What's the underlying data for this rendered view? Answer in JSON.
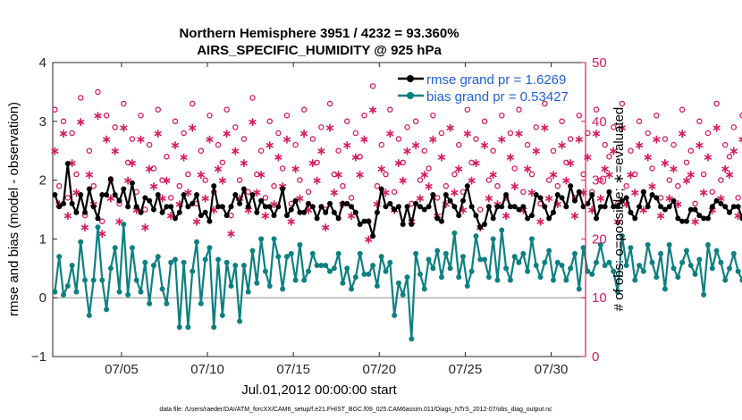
{
  "chart_data": {
    "type": "line",
    "title_line1": "Northern Hemisphere 3951 / 4232 = 93.360%",
    "title_line2": "AIRS_SPECIFIC_HUMIDITY @ 925 hPa",
    "ylabel_left": "rmse and bias (model - observation)",
    "ylabel_right": "# of obs: o=possible; ∗=evaluated",
    "xlabel": "Jul.01,2012 00:00:00 start",
    "footer": "data file: /Users/raeder/DAI/ATM_forcXX/CAM6_setup/f.e21.FHIST_BGC.f09_025.CAM6assim.011/Diags_NTrS_2012-07/obs_diag_output.nc",
    "xlim": [
      1,
      32
    ],
    "ylim_left": [
      -1,
      4
    ],
    "ylim_right": [
      0,
      50
    ],
    "x_ticks": [
      5,
      10,
      15,
      20,
      25,
      30
    ],
    "x_tick_labels": [
      "07/05",
      "07/10",
      "07/15",
      "07/20",
      "07/25",
      "07/30"
    ],
    "yl_ticks": [
      -1,
      0,
      1,
      2,
      3,
      4
    ],
    "yl_tick_labels": [
      "−1",
      "0",
      "1",
      "2",
      "3",
      "4"
    ],
    "yr_ticks": [
      0,
      10,
      20,
      30,
      40,
      50
    ],
    "yr_tick_labels": [
      "0",
      "10",
      "20",
      "30",
      "40",
      "50"
    ],
    "grid": false,
    "legend_position": "top-right",
    "colors": {
      "rmse": "#000000",
      "bias": "#0d8080",
      "obs": "#d81b5a",
      "zero_line": "#b3b3b3"
    },
    "x_start": 1.125,
    "x_step": 0.25,
    "series": [
      {
        "name": "rmse grand pr = 1.6269",
        "axis": "left",
        "values": [
          1.75,
          1.55,
          1.6,
          2.28,
          1.6,
          1.45,
          1.75,
          1.45,
          1.85,
          1.55,
          1.35,
          1.75,
          1.75,
          2.02,
          1.75,
          1.65,
          1.85,
          1.55,
          1.95,
          1.55,
          1.45,
          1.7,
          1.65,
          1.5,
          1.75,
          1.45,
          1.55,
          1.55,
          1.35,
          1.45,
          1.75,
          1.55,
          1.6,
          1.75,
          1.4,
          1.45,
          1.3,
          1.9,
          1.55,
          1.55,
          1.4,
          1.55,
          1.75,
          1.6,
          1.85,
          1.55,
          1.75,
          1.45,
          1.65,
          1.55,
          1.55,
          1.4,
          1.55,
          1.85,
          1.4,
          1.5,
          1.65,
          1.45,
          1.45,
          1.6,
          1.55,
          1.35,
          1.55,
          1.45,
          1.6,
          1.45,
          1.35,
          1.6,
          1.6,
          1.55,
          1.45,
          1.25,
          1.3,
          1.3,
          1.05,
          1.45,
          1.85,
          1.55,
          1.6,
          1.5,
          1.55,
          1.25,
          1.55,
          1.25,
          1.6,
          1.55,
          1.5,
          1.55,
          1.75,
          1.35,
          1.3,
          1.75,
          1.65,
          1.55,
          1.4,
          1.65,
          1.9,
          1.55,
          1.4,
          1.2,
          1.25,
          1.55,
          1.35,
          1.55,
          1.55,
          1.75,
          1.55,
          1.55,
          1.5,
          1.55,
          1.35,
          1.4,
          1.75,
          1.7,
          1.55,
          1.35,
          1.45,
          1.75,
          1.7,
          1.55,
          1.9,
          1.65,
          1.8,
          1.55,
          1.6,
          1.75,
          1.35,
          1.55,
          1.55,
          1.8,
          1.55,
          1.55,
          1.65,
          1.7,
          1.45,
          1.35,
          1.55,
          1.8,
          1.55,
          1.75,
          1.7,
          1.55,
          1.5,
          1.55,
          1.65,
          1.35,
          1.3,
          1.3,
          1.5,
          1.5,
          1.4,
          1.35,
          1.35,
          1.55,
          1.65,
          1.6,
          1.55,
          1.45,
          1.55,
          1.55,
          1.35,
          1.45,
          1.5,
          1.45,
          1.55,
          1.5,
          1.55,
          1.55,
          1.45,
          1.4,
          1.55,
          1.45,
          1.55,
          1.55,
          1.45,
          1.45,
          1.5,
          1.45,
          1.45,
          1.55,
          1.6,
          1.55,
          1.35,
          1.55,
          1.5,
          1.55,
          1.55,
          1.45,
          1.45,
          1.55,
          1.5,
          1.45,
          1.35,
          1.3,
          1.3,
          1.45,
          1.55,
          1.55,
          1.45,
          1.55,
          1.55,
          1.45,
          1.55,
          1.7,
          1.55,
          1.55,
          1.45,
          1.45,
          1.55,
          1.55,
          1.35,
          1.3,
          1.55,
          1.7,
          1.55,
          1.55,
          1.55,
          1.45,
          1.45,
          1.35,
          1.55,
          1.55,
          1.3,
          1.45,
          1.45,
          1.55,
          1.55,
          1.45,
          1.35,
          1.35,
          1.3,
          1.3,
          1.7
        ]
      },
      {
        "name": "bias grand pr = 0.53427",
        "axis": "left",
        "values": [
          0.1,
          0.7,
          0.05,
          0.2,
          0.55,
          0.1,
          0.95,
          0.3,
          -0.3,
          0.3,
          1.2,
          0.3,
          -0.2,
          0.5,
          0.85,
          0.1,
          1.25,
          0.05,
          0.85,
          0.3,
          0.1,
          0.6,
          -0.1,
          0.55,
          0.7,
          0.15,
          -0.1,
          0.6,
          0.65,
          -0.5,
          0.6,
          -0.5,
          0.45,
          0.95,
          -0.1,
          0.65,
          0.85,
          -0.5,
          0.65,
          -0.3,
          0.6,
          0.2,
          0.55,
          -0.4,
          0.55,
          0.1,
          0.8,
          0.25,
          1.0,
          0.45,
          0.2,
          1.0,
          0.7,
          0.15,
          0.7,
          0.75,
          0.3,
          0.9,
          0.3,
          0.45,
          0.75,
          0.55,
          0.55,
          0.55,
          0.45,
          0.5,
          0.75,
          0.25,
          0.5,
          0.15,
          0.35,
          0.75,
          0.4,
          0.4,
          0.55,
          0.2,
          0.7,
          0.45,
          0.6,
          -0.3,
          0.25,
          0.05,
          0.35,
          -0.7,
          0.75,
          0.4,
          0.15,
          0.65,
          0.5,
          0.8,
          0.35,
          0.75,
          0.5,
          1.1,
          0.35,
          0.7,
          0.2,
          0.45,
          1.05,
          0.65,
          0.65,
          0.35,
          1.0,
          0.3,
          1.15,
          0.5,
          0.3,
          0.7,
          0.6,
          0.75,
          0.45,
          1.0,
          0.55,
          0.35,
          0.6,
          0.8,
          0.3,
          0.6,
          0.55,
          0.3,
          0.5,
          0.75,
          0.15,
          0.85,
          0.45,
          0.4,
          0.6,
          0.9,
          0.55,
          0.6,
          0.45,
          0.1,
          1.05,
          0.55,
          0.85,
          0.3,
          0.55,
          0.45,
          0.9,
          0.6,
          0.35,
          0.75,
          0.15,
          0.9,
          0.5,
          0.35,
          0.6,
          0.8,
          0.55,
          0.4,
          0.65,
          0.05,
          0.9,
          0.5,
          0.8,
          0.6,
          0.3,
          0.5,
          0.75,
          0.45,
          0.3,
          0.7,
          0.55,
          0.95,
          0.45,
          0.25,
          0.6,
          0.85,
          0.4,
          0.55,
          0.7,
          0.3,
          0.55,
          0.8,
          0.5,
          0.4,
          0.7,
          0.2,
          0.6,
          0.45,
          0.8,
          0.3,
          0.65,
          0.5,
          0.35,
          0.75,
          0.55,
          0.25,
          0.6,
          0.45,
          0.7,
          0.35,
          0.55,
          0.8,
          0.4,
          0.55,
          0.6,
          0.3,
          0.45,
          0.75,
          0.5,
          0.65,
          0.35,
          0.55,
          0.7,
          0.45,
          0.6,
          0.3,
          0.5,
          0.75,
          0.4,
          0.6,
          0.55,
          0.45,
          0.65,
          0.3,
          0.55,
          0.7,
          0.5,
          0.4,
          0.65,
          0.35,
          0.5,
          0.75,
          0.6,
          0.45,
          0.55,
          0.3,
          0.9
        ]
      },
      {
        "name": "obs possible",
        "axis": "right",
        "marker": "o",
        "values": [
          42,
          29,
          40,
          27,
          38,
          31,
          44,
          24,
          35,
          29,
          45,
          23,
          41,
          30,
          39,
          26,
          43,
          33,
          37,
          28,
          41,
          25,
          36,
          32,
          42,
          30,
          34,
          27,
          40,
          29,
          38,
          31,
          43,
          26,
          35,
          30,
          41,
          28,
          36,
          33,
          42,
          24,
          39,
          30,
          37,
          28,
          44,
          31,
          35,
          27,
          40,
          29,
          38,
          32,
          41,
          26,
          36,
          30,
          42,
          28,
          37,
          33,
          39,
          25,
          43,
          31,
          35,
          29,
          40,
          27,
          38,
          34,
          41,
          23,
          46,
          29,
          36,
          31,
          42,
          28,
          37,
          33,
          39,
          26,
          40,
          30,
          35,
          32,
          41,
          27,
          38,
          29,
          43,
          31,
          36,
          28,
          42,
          33,
          37,
          25,
          40,
          30,
          35,
          29,
          41,
          27,
          38,
          32,
          42,
          28,
          36,
          31,
          39,
          26,
          43,
          30,
          35,
          29,
          40,
          33,
          37,
          27,
          41,
          31,
          38,
          28,
          42,
          30,
          36,
          34,
          39,
          26,
          43,
          29,
          35,
          31,
          40,
          28,
          38,
          32,
          41,
          27,
          37,
          30,
          36,
          29,
          42,
          33,
          35,
          26,
          40,
          31,
          38,
          28,
          43,
          30,
          36,
          34,
          39,
          27,
          41,
          29,
          37,
          31,
          44,
          28,
          35,
          32,
          40,
          30,
          38,
          26,
          42,
          33,
          36,
          29,
          41,
          31,
          50,
          28,
          37,
          30,
          39,
          34,
          42,
          27,
          35,
          31,
          40,
          29,
          38,
          33,
          43,
          28,
          36,
          30,
          41,
          32,
          37,
          26,
          39,
          31,
          35,
          29,
          42,
          30,
          38,
          33,
          40,
          27,
          36,
          31,
          43,
          28,
          37,
          30,
          41,
          49,
          35,
          29,
          48,
          32,
          39,
          28,
          40,
          31
        ]
      },
      {
        "name": "obs evaluated",
        "axis": "right",
        "marker": "*",
        "values": [
          35,
          26,
          38,
          24,
          33,
          28,
          40,
          22,
          31,
          26,
          41,
          21,
          37,
          27,
          35,
          23,
          39,
          30,
          33,
          25,
          37,
          22,
          32,
          29,
          38,
          27,
          30,
          24,
          36,
          26,
          34,
          28,
          39,
          23,
          31,
          27,
          37,
          25,
          32,
          30,
          38,
          21,
          35,
          27,
          33,
          25,
          40,
          28,
          31,
          24,
          36,
          26,
          34,
          29,
          37,
          23,
          32,
          27,
          38,
          25,
          33,
          30,
          35,
          22,
          39,
          28,
          31,
          26,
          36,
          24,
          34,
          31,
          37,
          20,
          42,
          26,
          32,
          28,
          38,
          25,
          33,
          30,
          35,
          23,
          36,
          27,
          31,
          29,
          37,
          24,
          34,
          26,
          39,
          28,
          32,
          25,
          38,
          30,
          33,
          22,
          36,
          27,
          31,
          26,
          37,
          24,
          34,
          29,
          38,
          25,
          32,
          28,
          35,
          23,
          39,
          27,
          31,
          26,
          36,
          30,
          33,
          24,
          37,
          28,
          34,
          25,
          38,
          27,
          32,
          31,
          35,
          23,
          39,
          26,
          31,
          28,
          36,
          25,
          34,
          29,
          37,
          24,
          33,
          27,
          32,
          26,
          38,
          30,
          31,
          23,
          36,
          28,
          34,
          25,
          39,
          27,
          32,
          31,
          35,
          24,
          37,
          26,
          33,
          28,
          40,
          25,
          31,
          29,
          36,
          27,
          34,
          23,
          38,
          30,
          32,
          26,
          37,
          28,
          45,
          25,
          33,
          27,
          35,
          31,
          38,
          24,
          31,
          28,
          36,
          26,
          34,
          30,
          39,
          25,
          32,
          27,
          37,
          29,
          33,
          23,
          35,
          28,
          31,
          26,
          38,
          27,
          34,
          30,
          36,
          24,
          32,
          28,
          39,
          25,
          33,
          27,
          37,
          45,
          31,
          26,
          44,
          29,
          35,
          25,
          36,
          28
        ]
      }
    ]
  }
}
